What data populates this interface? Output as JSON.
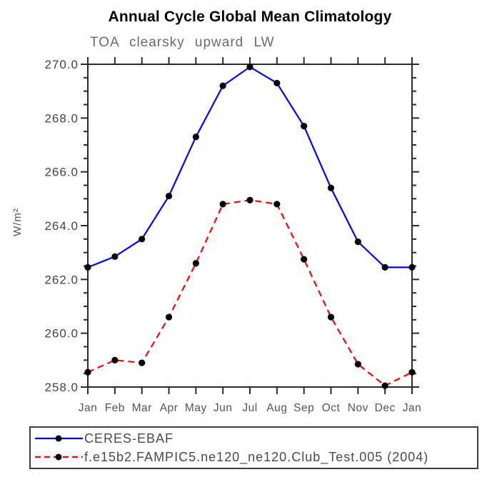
{
  "chart_data": {
    "type": "line",
    "title": "Annual Cycle Global Mean Climatology",
    "subtitle": "TOA clearsky upward LW",
    "ylabel": "W/m²",
    "xlabel": "",
    "categories": [
      "Jan",
      "Feb",
      "Mar",
      "Apr",
      "May",
      "Jun",
      "Jul",
      "Aug",
      "Sep",
      "Oct",
      "Nov",
      "Dec",
      "Jan"
    ],
    "series": [
      {
        "name": "CERES-EBAF",
        "color": "#0000ff",
        "line_style": "solid",
        "marker": "filled-circle",
        "marker_color": "#000000",
        "values": [
          262.45,
          262.85,
          263.5,
          265.1,
          267.3,
          269.2,
          269.9,
          269.3,
          267.7,
          265.4,
          263.4,
          262.45,
          262.45
        ]
      },
      {
        "name": "f.e15b2.FAMPIC5.ne120_ne120.Club_Test.005 (2004)",
        "color": "#ff0000",
        "line_style": "dashed",
        "marker": "filled-circle",
        "marker_color": "#000000",
        "values": [
          258.55,
          259.0,
          258.9,
          260.6,
          262.6,
          264.8,
          264.95,
          264.8,
          262.75,
          260.6,
          258.85,
          258.05,
          258.55
        ]
      }
    ],
    "ylim": [
      258.0,
      270.0
    ],
    "ytick_major_step": 2.0,
    "ytick_minor_step": 0.5,
    "ytick_labels": [
      "270.0",
      "268.0",
      "266.0",
      "264.0",
      "262.0",
      "260.0",
      "258.0"
    ],
    "grid": "off",
    "legend_position": "bottom-left-box",
    "axis_color": "#2b2b2b",
    "tick_label_color": "#454545",
    "month_label_color": "#555555"
  }
}
